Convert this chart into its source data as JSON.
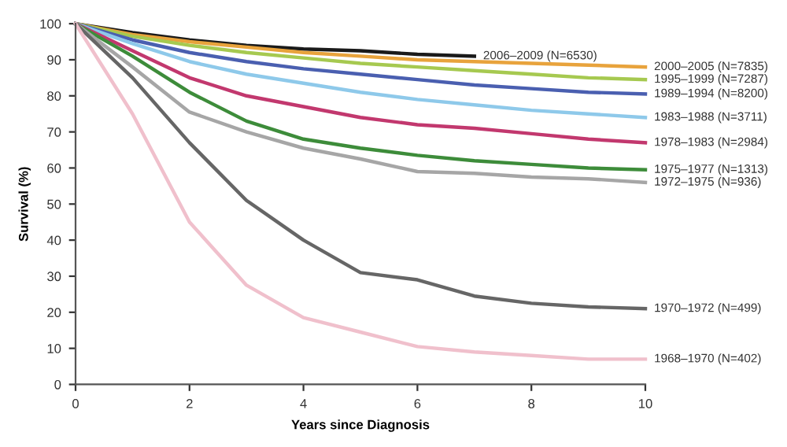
{
  "chart_data": {
    "type": "line",
    "xlabel": "Years since Diagnosis",
    "ylabel": "Survival (%)",
    "xlim": [
      0,
      10
    ],
    "ylim": [
      0,
      100
    ],
    "xticks": [
      0,
      2,
      4,
      6,
      8,
      10
    ],
    "yticks": [
      0,
      10,
      20,
      30,
      40,
      50,
      60,
      70,
      80,
      90,
      100
    ],
    "grid": false,
    "legend": false,
    "series": [
      {
        "name": "2006–2009 (N=6530)",
        "color": "#1a1a1a",
        "x": [
          0,
          1,
          2,
          3,
          4,
          5,
          6,
          7
        ],
        "values": [
          100,
          97.5,
          95.5,
          94,
          93,
          92.5,
          91.5,
          91
        ]
      },
      {
        "name": "2000–2005 (N=7835)",
        "color": "#e8a33c",
        "x": [
          0,
          1,
          2,
          3,
          4,
          5,
          6,
          7,
          8,
          9,
          10
        ],
        "values": [
          100,
          97,
          95,
          93.5,
          92,
          91,
          90,
          89.5,
          89,
          88.5,
          88
        ]
      },
      {
        "name": "1995–1999 (N=7287)",
        "color": "#a6c950",
        "x": [
          0,
          1,
          2,
          3,
          4,
          5,
          6,
          7,
          8,
          9,
          10
        ],
        "values": [
          100,
          96.5,
          94,
          92,
          90.5,
          89,
          88,
          87,
          86,
          85,
          84.5
        ]
      },
      {
        "name": "1989–1994 (N=8200)",
        "color": "#4a5fb0",
        "x": [
          0,
          1,
          2,
          3,
          4,
          5,
          6,
          7,
          8,
          9,
          10
        ],
        "values": [
          100,
          95.5,
          92,
          89.5,
          87.5,
          86,
          84.5,
          83,
          82,
          81,
          80.5
        ]
      },
      {
        "name": "1983–1988 (N=3711)",
        "color": "#8ec9ea",
        "x": [
          0,
          1,
          2,
          3,
          4,
          5,
          6,
          7,
          8,
          9,
          10
        ],
        "values": [
          100,
          94.5,
          89.5,
          86,
          83.5,
          81,
          79,
          77.5,
          76,
          75,
          74
        ]
      },
      {
        "name": "1978–1983 (N=2984)",
        "color": "#c2386e",
        "x": [
          0,
          1,
          2,
          3,
          4,
          5,
          6,
          7,
          8,
          9,
          10
        ],
        "values": [
          100,
          92.5,
          85,
          80,
          77,
          74,
          72,
          71,
          69.5,
          68,
          67
        ]
      },
      {
        "name": "1975–1977 (N=1313)",
        "color": "#3d8c3a",
        "x": [
          0,
          1,
          2,
          3,
          4,
          5,
          6,
          7,
          8,
          9,
          10
        ],
        "values": [
          100,
          91,
          81,
          73,
          68,
          65.5,
          63.5,
          62,
          61,
          60,
          59.5
        ]
      },
      {
        "name": "1972–1975 (N=936)",
        "color": "#a6a6a6",
        "x": [
          0,
          1,
          2,
          3,
          4,
          5,
          6,
          7,
          8,
          9,
          10
        ],
        "values": [
          100,
          88,
          75.5,
          70,
          65.5,
          62.5,
          59,
          58.5,
          57.5,
          57,
          56
        ]
      },
      {
        "name": "1970–1972 (N=499)",
        "color": "#666666",
        "x": [
          0,
          1,
          2,
          3,
          4,
          5,
          6,
          7,
          8,
          9,
          10
        ],
        "values": [
          100,
          85,
          67,
          51,
          40,
          31,
          29,
          24.5,
          22.5,
          21.5,
          21
        ]
      },
      {
        "name": "1968–1970 (N=402)",
        "color": "#f0c0cc",
        "x": [
          0,
          1,
          2,
          3,
          4,
          5,
          6,
          7,
          8,
          9,
          10
        ],
        "values": [
          100,
          75,
          45,
          27.5,
          18.5,
          14.5,
          10.5,
          9,
          8,
          7,
          7
        ]
      }
    ]
  }
}
